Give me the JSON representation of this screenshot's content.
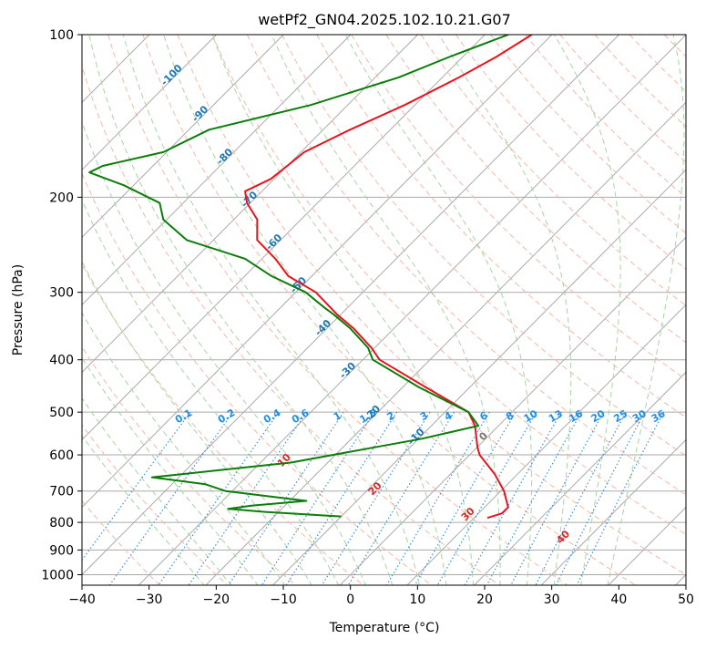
{
  "chart_data": {
    "type": "skew-t",
    "title": "wetPf2_GN04.2025.102.10.21.G07",
    "xlabel": "Temperature (°C)",
    "ylabel": "Pressure (hPa)",
    "xlim": [
      -40,
      50
    ],
    "ylim_hpa": [
      1050,
      100
    ],
    "x_ticks": [
      -40,
      -30,
      -20,
      -10,
      0,
      10,
      20,
      30,
      40,
      50
    ],
    "y_ticks": [
      100,
      200,
      300,
      400,
      500,
      600,
      700,
      800,
      900,
      1000
    ],
    "grid": true,
    "colors": {
      "temperature": "#e8141c",
      "dewpoint": "#0a7d0a",
      "isotherm": "#aaaaaa",
      "dry_adiabat": "#f6b8a6",
      "moist_adiabat": "#a8d4a2",
      "mixing_ratio": "#3f8fd8",
      "dry_adiabat_label": "#d62728",
      "isotherm_label": "#1f77b4",
      "mixing_ratio_label": "#1f8fe6"
    },
    "isotherm_labels": [
      -100,
      -90,
      -80,
      -70,
      -60,
      -50,
      -40,
      -30,
      -20,
      -10,
      0
    ],
    "dry_adiabat_labels": [
      10,
      20,
      30,
      40
    ],
    "mixing_ratio_labels": [
      "0.1",
      "0.2",
      "0.4",
      "0.6",
      "1",
      "1.5",
      "2",
      "3",
      "4",
      "6",
      "8",
      "10",
      "13",
      "16",
      "20",
      "25",
      "30",
      "36"
    ],
    "series": [
      {
        "name": "temperature",
        "points": [
          [
            100,
            -53.0
          ],
          [
            110,
            -55.0
          ],
          [
            120,
            -57.5
          ],
          [
            135,
            -61.5
          ],
          [
            150,
            -66.0
          ],
          [
            165,
            -69.5
          ],
          [
            175,
            -70.0
          ],
          [
            185,
            -70.5
          ],
          [
            195,
            -72.5
          ],
          [
            205,
            -70.5
          ],
          [
            220,
            -66.5
          ],
          [
            240,
            -63.5
          ],
          [
            260,
            -58.0
          ],
          [
            280,
            -53.5
          ],
          [
            300,
            -47.0
          ],
          [
            330,
            -40.5
          ],
          [
            350,
            -36.0
          ],
          [
            380,
            -30.5
          ],
          [
            400,
            -27.5
          ],
          [
            450,
            -16.5
          ],
          [
            500,
            -6.5
          ],
          [
            530,
            -3.5
          ],
          [
            580,
            0.0
          ],
          [
            600,
            1.5
          ],
          [
            650,
            6.5
          ],
          [
            700,
            10.5
          ],
          [
            750,
            13.5
          ],
          [
            770,
            13.5
          ],
          [
            785,
            12.0
          ]
        ]
      },
      {
        "name": "dewpoint",
        "points": [
          [
            100,
            -56.5
          ],
          [
            110,
            -62.0
          ],
          [
            120,
            -66.5
          ],
          [
            135,
            -75.5
          ],
          [
            150,
            -87.0
          ],
          [
            165,
            -90.5
          ],
          [
            175,
            -97.5
          ],
          [
            180,
            -98.5
          ],
          [
            190,
            -91.5
          ],
          [
            205,
            -83.5
          ],
          [
            220,
            -80.5
          ],
          [
            240,
            -74.0
          ],
          [
            260,
            -62.5
          ],
          [
            280,
            -56.0
          ],
          [
            300,
            -48.5
          ],
          [
            320,
            -43.5
          ],
          [
            330,
            -41.0
          ],
          [
            350,
            -36.5
          ],
          [
            380,
            -31.0
          ],
          [
            400,
            -28.5
          ],
          [
            450,
            -17.5
          ],
          [
            500,
            -6.5
          ],
          [
            530,
            -3.0
          ],
          [
            560,
            -9.5
          ],
          [
            580,
            -15.0
          ],
          [
            620,
            -25.5
          ],
          [
            650,
            -39.5
          ],
          [
            660,
            -44.0
          ],
          [
            680,
            -35.0
          ],
          [
            700,
            -31.0
          ],
          [
            730,
            -17.5
          ],
          [
            745,
            -25.0
          ],
          [
            755,
            -28.0
          ],
          [
            765,
            -22.0
          ],
          [
            780,
            -10.0
          ]
        ]
      }
    ]
  }
}
